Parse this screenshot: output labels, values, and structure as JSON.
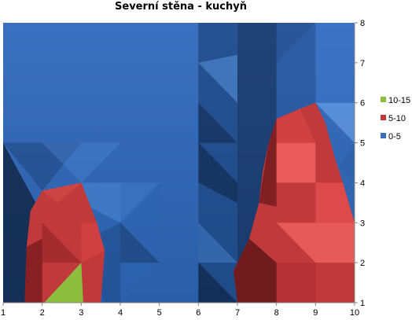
{
  "chart_data": {
    "type": "area",
    "subtype": "surface-contour",
    "title": "Severní stěna  - kuchyň",
    "xlabel": "",
    "ylabel": "",
    "x_ticks": [
      1,
      2,
      3,
      4,
      5,
      6,
      7,
      8,
      9,
      10
    ],
    "y_ticks": [
      1,
      2,
      3,
      4,
      5,
      6,
      7,
      8
    ],
    "xlim": [
      1,
      10
    ],
    "ylim": [
      1,
      8
    ],
    "grid": false,
    "legend_position": "right",
    "bands": [
      {
        "name": "0-5",
        "color": "#3a6fbe"
      },
      {
        "name": "5-10",
        "color": "#c0393b"
      },
      {
        "name": "10-15",
        "color": "#8cbd3f"
      }
    ],
    "regions": [
      {
        "band": "5-10",
        "points": [
          [
            1.55,
            1
          ],
          [
            1.6,
            2.4
          ],
          [
            1.7,
            3.3
          ],
          [
            2,
            3.8
          ],
          [
            3,
            4
          ],
          [
            3.4,
            3
          ],
          [
            3.6,
            2.3
          ],
          [
            3.5,
            1
          ]
        ]
      },
      {
        "band": "10-15",
        "points": [
          [
            2.05,
            1
          ],
          [
            3,
            2
          ],
          [
            3.05,
            1
          ]
        ]
      },
      {
        "band": "5-10",
        "points": [
          [
            7,
            1
          ],
          [
            6.9,
            1.8
          ],
          [
            7.3,
            2.6
          ],
          [
            7.55,
            3.5
          ],
          [
            7.65,
            4.3
          ],
          [
            7.8,
            5
          ],
          [
            8,
            5.6
          ],
          [
            8.6,
            5.85
          ],
          [
            9,
            6
          ],
          [
            9.25,
            5.5
          ],
          [
            9.5,
            4.6
          ],
          [
            9.7,
            4
          ],
          [
            10,
            3
          ],
          [
            10,
            1
          ]
        ]
      }
    ]
  }
}
